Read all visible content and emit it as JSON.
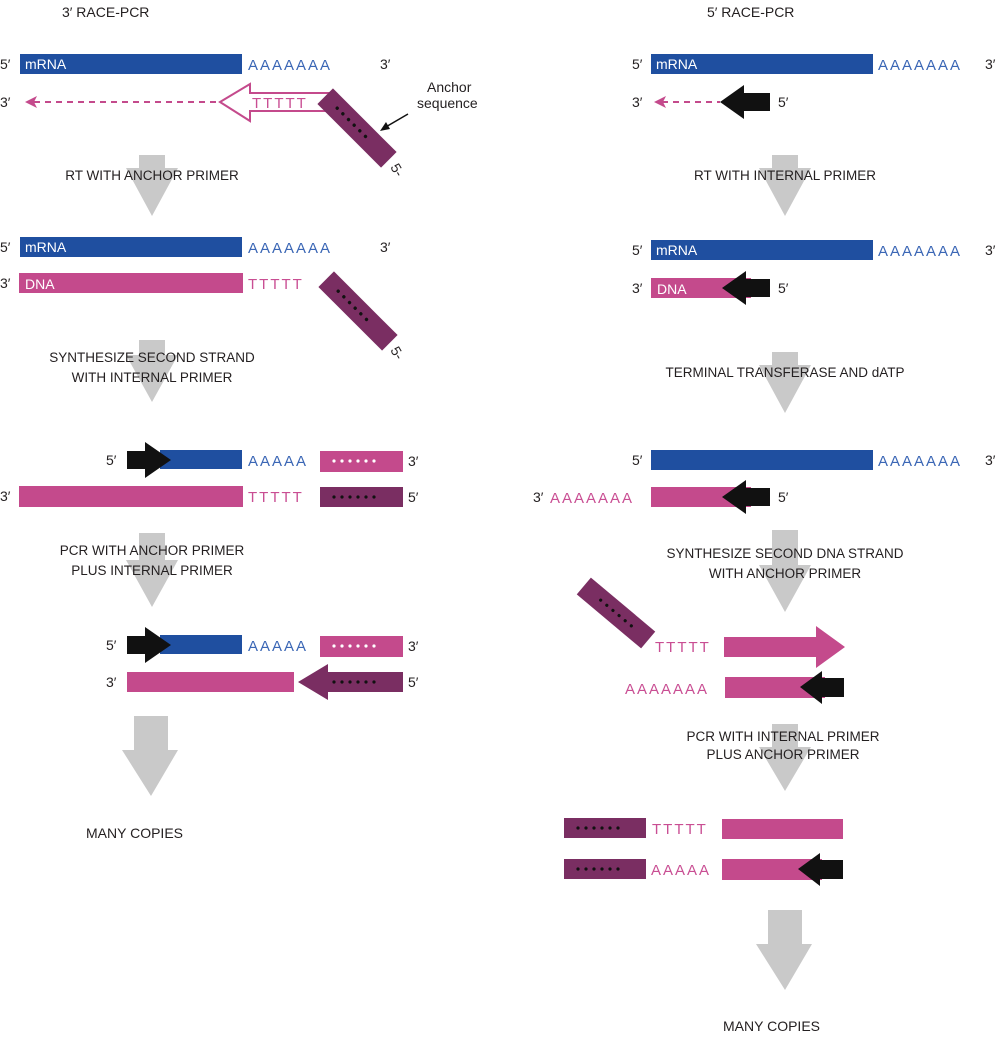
{
  "left": {
    "title": "3′ RACE-PCR",
    "steps": [
      "RT WITH ANCHOR PRIMER",
      "SYNTHESIZE SECOND STRAND",
      "WITH INTERNAL PRIMER",
      "PCR WITH ANCHOR PRIMER",
      "PLUS INTERNAL PRIMER",
      "MANY COPIES"
    ],
    "anchor_label": [
      "Anchor",
      "sequence"
    ]
  },
  "right": {
    "title": "5′ RACE-PCR",
    "steps": [
      "RT WITH INTERNAL  PRIMER",
      "TERMINAL TRANSFERASE AND dATP",
      "SYNTHESIZE SECOND DNA STRAND",
      "WITH ANCHOR PRIMER",
      "PCR WITH INTERNAL PRIMER",
      "PLUS ANCHOR PRIMER",
      "MANY COPIES"
    ]
  },
  "labels": {
    "five": "5′",
    "three": "3′",
    "five_dash": "5-",
    "mrna": "mRNA",
    "dna": "DNA",
    "a7": "AAAAAAA",
    "a5": "AAAAA",
    "t5": "TTTTT"
  },
  "colors": {
    "mrna": "#1f4fa0",
    "dna": "#c44a8c",
    "anchor": "#7a2e62",
    "primer": "#111111",
    "process_arrow": "#c9c9c9"
  }
}
